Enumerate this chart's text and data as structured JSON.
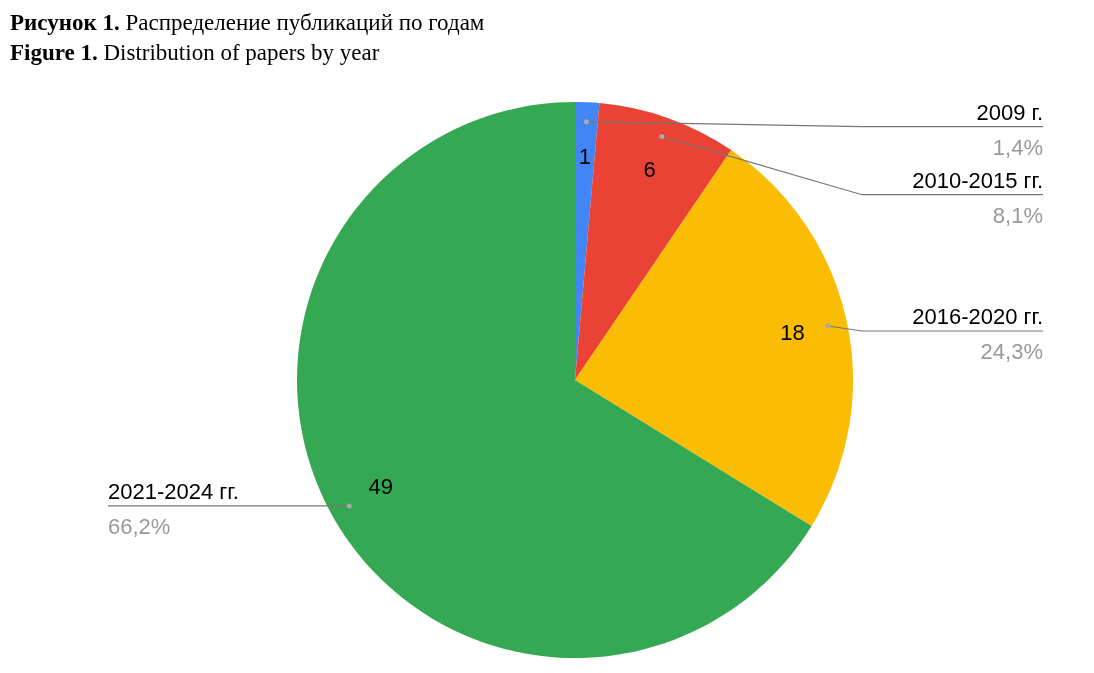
{
  "chart_data": {
    "type": "pie",
    "title": "Рисунок 1. Распределение публикаций по годам",
    "subtitle": "Figure 1. Distribution of papers by year",
    "categories": [
      "2009 г.",
      "2010-2015 гг.",
      "2016-2020 гг.",
      "2021-2024 гг."
    ],
    "values": [
      1.4,
      8.1,
      24.3,
      66.2
    ],
    "colors": [
      "#4285f4",
      "#ea4335",
      "#fbbc04",
      "#34a853"
    ],
    "value_labels": [
      "1,4%",
      "8,1%",
      "24,3%",
      "66,2%"
    ],
    "annotations": [
      {
        "text": "1",
        "x": "2009 г."
      },
      {
        "text": "6",
        "x": "2010-2015 гг."
      },
      {
        "text": "18",
        "x": "2016-2020 гг."
      },
      {
        "text": "49",
        "x": "2021-2024 гг."
      }
    ],
    "legend": false
  }
}
